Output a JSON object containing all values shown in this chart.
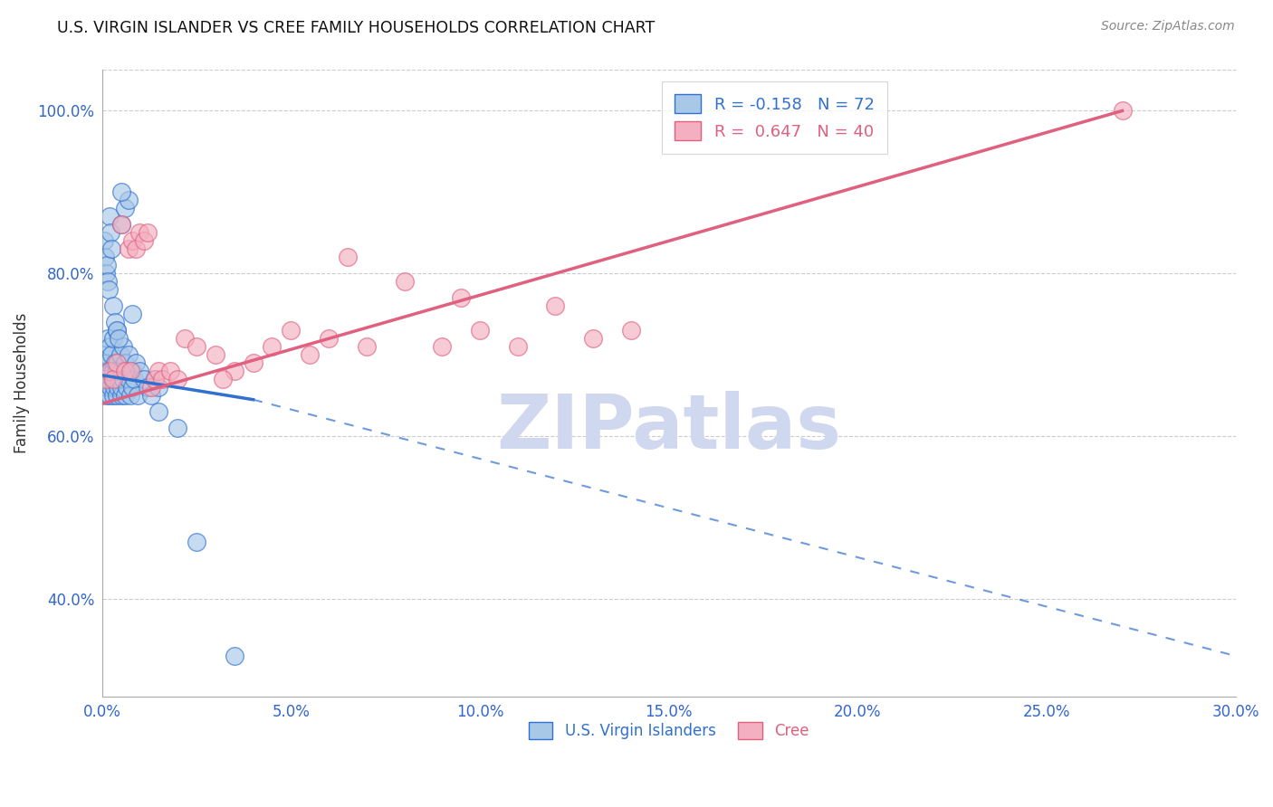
{
  "title": "U.S. VIRGIN ISLANDER VS CREE FAMILY HOUSEHOLDS CORRELATION CHART",
  "source": "Source: ZipAtlas.com",
  "xlabel": "",
  "ylabel": "Family Households",
  "legend_label_blue": "U.S. Virgin Islanders",
  "legend_label_pink": "Cree",
  "R_blue": -0.158,
  "N_blue": 72,
  "R_pink": 0.647,
  "N_pink": 40,
  "xmin": 0.0,
  "xmax": 30.0,
  "ymin": 28.0,
  "ymax": 105.0,
  "yticks": [
    40.0,
    60.0,
    80.0,
    100.0
  ],
  "xticks": [
    0.0,
    5.0,
    10.0,
    15.0,
    20.0,
    25.0,
    30.0
  ],
  "blue_color": "#A8C8E8",
  "pink_color": "#F4B0C0",
  "blue_line_color": "#3070D0",
  "pink_line_color": "#E06080",
  "watermark_color": "#D0D8F0",
  "watermark": "ZIPatlas",
  "blue_scatter_x": [
    0.05,
    0.08,
    0.1,
    0.1,
    0.12,
    0.13,
    0.15,
    0.15,
    0.18,
    0.2,
    0.2,
    0.22,
    0.25,
    0.25,
    0.28,
    0.3,
    0.3,
    0.3,
    0.32,
    0.35,
    0.35,
    0.38,
    0.4,
    0.4,
    0.42,
    0.45,
    0.48,
    0.5,
    0.5,
    0.52,
    0.55,
    0.55,
    0.6,
    0.6,
    0.65,
    0.65,
    0.7,
    0.7,
    0.75,
    0.8,
    0.8,
    0.85,
    0.9,
    0.95,
    1.0,
    1.1,
    1.2,
    1.3,
    1.4,
    1.5,
    0.05,
    0.08,
    0.1,
    0.12,
    0.15,
    0.18,
    0.2,
    0.22,
    0.25,
    0.3,
    0.35,
    0.4,
    0.45,
    0.5,
    0.6,
    0.7,
    0.8,
    1.5,
    2.0,
    2.5,
    0.5,
    3.5
  ],
  "blue_scatter_y": [
    67,
    68,
    65,
    70,
    66,
    69,
    67,
    72,
    68,
    65,
    71,
    66,
    68,
    70,
    67,
    65,
    68,
    72,
    66,
    67,
    69,
    65,
    68,
    73,
    66,
    67,
    70,
    65,
    68,
    66,
    71,
    67,
    65,
    69,
    68,
    66,
    67,
    70,
    65,
    68,
    66,
    67,
    69,
    65,
    68,
    67,
    66,
    65,
    67,
    66,
    84,
    82,
    80,
    81,
    79,
    78,
    87,
    85,
    83,
    76,
    74,
    73,
    72,
    86,
    88,
    89,
    75,
    63,
    61,
    47,
    90,
    33
  ],
  "pink_scatter_x": [
    0.1,
    0.2,
    0.3,
    0.4,
    0.6,
    0.7,
    0.8,
    0.9,
    1.0,
    1.1,
    1.2,
    1.3,
    1.4,
    1.5,
    1.6,
    1.8,
    2.0,
    2.2,
    2.5,
    3.0,
    3.5,
    4.0,
    4.5,
    5.0,
    5.5,
    6.0,
    7.0,
    8.0,
    9.0,
    10.0,
    11.0,
    12.0,
    13.0,
    14.0,
    0.5,
    0.75,
    3.2,
    6.5,
    9.5,
    27.0
  ],
  "pink_scatter_y": [
    67,
    68,
    67,
    69,
    68,
    83,
    84,
    83,
    85,
    84,
    85,
    66,
    67,
    68,
    67,
    68,
    67,
    72,
    71,
    70,
    68,
    69,
    71,
    73,
    70,
    72,
    71,
    79,
    71,
    73,
    71,
    76,
    72,
    73,
    86,
    68,
    67,
    82,
    77,
    100
  ],
  "blue_line_x0": 0.0,
  "blue_line_y0": 67.5,
  "blue_line_x1": 4.0,
  "blue_line_y1": 64.5,
  "blue_dash_x1": 30.0,
  "blue_dash_y1": 33.0,
  "pink_line_x0": 0.0,
  "pink_line_y0": 64.0,
  "pink_line_x1": 27.0,
  "pink_line_y1": 100.0
}
